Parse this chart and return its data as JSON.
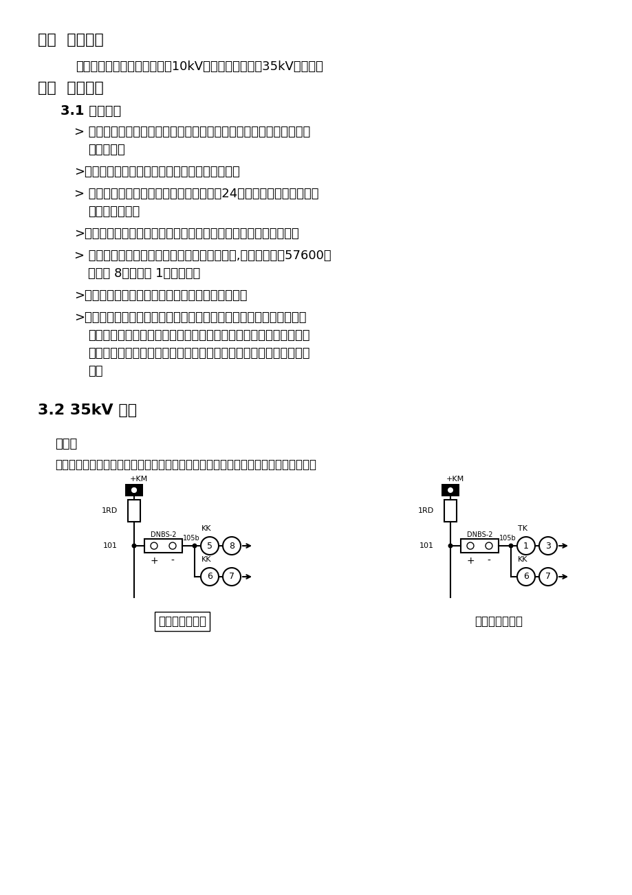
{
  "bg_color": "#ffffff",
  "section2_title": "二、  施工范围",
  "section2_body": "小白塔水电站中控室、主变、10kV开关室、励磁变、35kV开关室。",
  "section3_title": "三、  施工明晰",
  "section31_title": "3.1 五防主机",
  "bullet1_line1": "> 在小白塔水电站中控室装设五防主机，五防主机放置位置由电站相关",
  "bullet1_line2": "人员指定。",
  "bullet2": ">五防工作站电源接入利用现有的电源供给方式。",
  "bullet3_line1": "> 工作站主机为戴尔商用计算机；显示器为24寸液晶（黑色宽屏）；配",
  "bullet3_line2": "置激光打印机。",
  "bullet4": ">根据现场主接线图和闭锁范围绘制五防主接线，并编辑闭锁条件。",
  "bullet5_line1": "> 五防工作站与防误主机之间采用串口方式通讯,配置波特率为57600、",
  "bullet5_line2": "数据位 8、停止位 1、无校验。",
  "bullet6": ">五防工作站与集控中心服务器之间采用网络通讯。",
  "bullet7_line1": ">监控厂家需要到场启用和配置与防误系统通讯配套的通讯模块，双方",
  "bullet7_line2": "约定通讯模块后配置好相应的规约参数，实遥信顺序表和遥控点表由",
  "bullet7_line3": "监控厂家制作、提供；五防向监控发送解锁命令的方式做解、闭锁试",
  "bullet7_line4": "验。",
  "section32_title": "3.2 35kV 设备",
  "dluq_title": "断路器",
  "dluq_desc": "通过在开关柜上加装电编码锁，实现断路器就地电动操作的强制闭锁，接线方式如下：",
  "label_left": "无同期闭锁回路",
  "label_right": "有同期闭锁回路"
}
